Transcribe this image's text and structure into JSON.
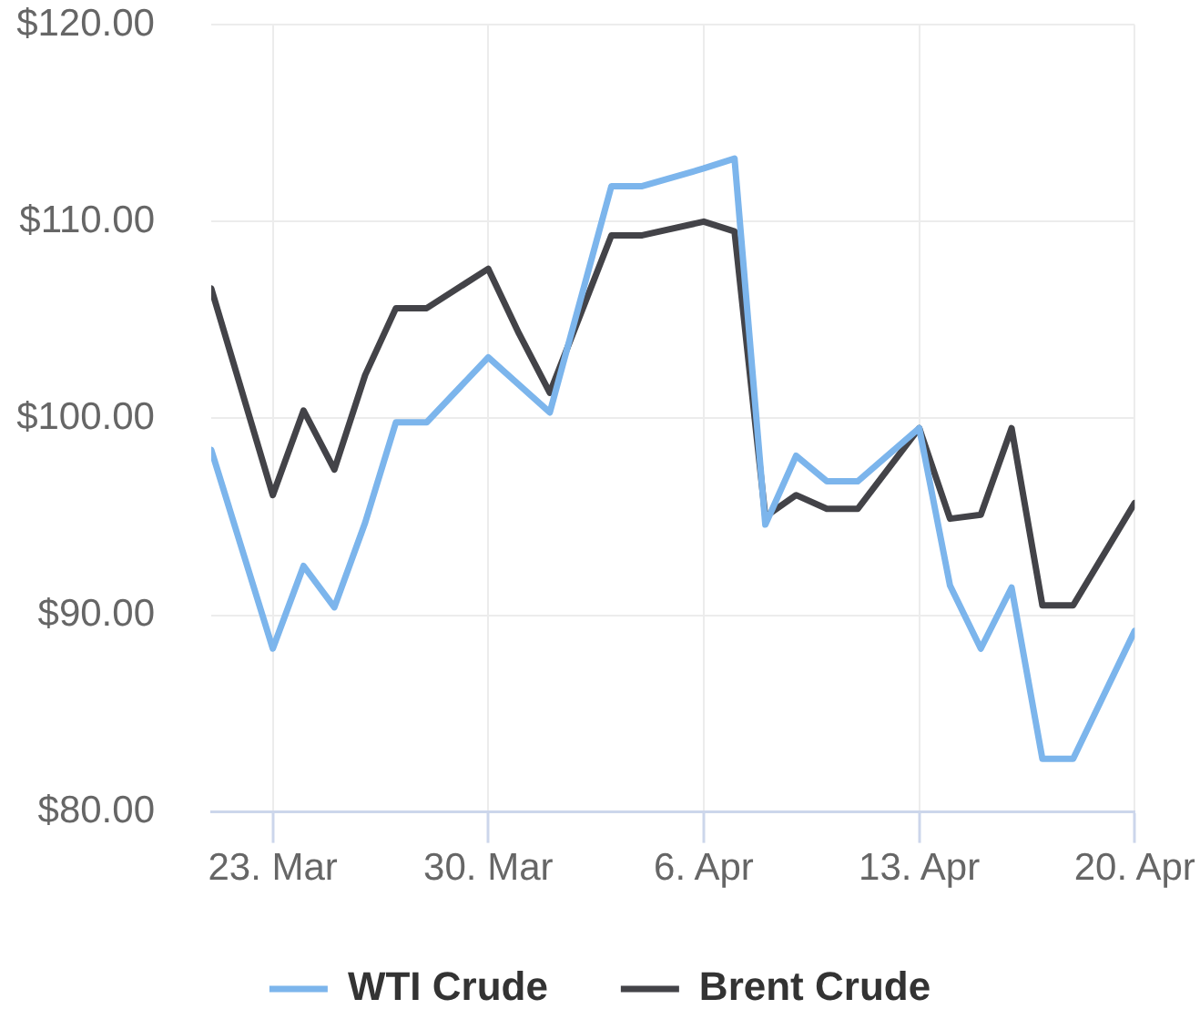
{
  "chart_data": {
    "type": "line",
    "x": [
      "--03-21",
      "--03-23",
      "--03-24",
      "--03-25",
      "--03-26",
      "--03-27",
      "--03-28",
      "--03-30",
      "--03-31",
      "--04-01",
      "--04-03",
      "--04-04",
      "--04-06",
      "--04-07",
      "--04-08",
      "--04-09",
      "--04-10",
      "--04-11",
      "--04-13",
      "--04-14",
      "--04-15",
      "--04-16",
      "--04-17",
      "--04-18",
      "--04-20"
    ],
    "series": [
      {
        "name": "WTI Crude",
        "color": "#7cb5ec",
        "values": [
          98.4,
          88.3,
          92.5,
          90.4,
          94.7,
          99.8,
          99.8,
          103.1,
          101.7,
          100.3,
          111.8,
          111.8,
          112.7,
          113.2,
          94.6,
          98.1,
          96.8,
          96.8,
          99.5,
          91.5,
          88.3,
          91.4,
          82.7,
          82.7,
          89.2
        ]
      },
      {
        "name": "Brent Crude",
        "color": "#434348",
        "values": [
          106.6,
          96.1,
          100.4,
          97.4,
          102.2,
          105.6,
          105.6,
          107.6,
          104.3,
          101.3,
          109.3,
          109.3,
          110.0,
          109.5,
          95.0,
          96.1,
          95.4,
          95.4,
          99.5,
          94.9,
          95.1,
          99.5,
          90.5,
          90.5,
          95.7
        ]
      }
    ],
    "xlim": [
      "--03-21",
      "--04-20"
    ],
    "xticks": [
      {
        "value": "--03-23",
        "label": "23. Mar"
      },
      {
        "value": "--03-30",
        "label": "30. Mar"
      },
      {
        "value": "--04-06",
        "label": "6. Apr"
      },
      {
        "value": "--04-13",
        "label": "13. Apr"
      },
      {
        "value": "--04-20",
        "label": "20. Apr"
      }
    ],
    "ylim": [
      80,
      120
    ],
    "yticks": [
      {
        "value": 80,
        "label": "$80.00"
      },
      {
        "value": 90,
        "label": "$90.00"
      },
      {
        "value": 100,
        "label": "$100.00"
      },
      {
        "value": 110,
        "label": "$110.00"
      },
      {
        "value": 120,
        "label": "$120.00"
      }
    ],
    "grid": true,
    "legend": "bottom",
    "marker": "none",
    "line_style": "solid"
  }
}
